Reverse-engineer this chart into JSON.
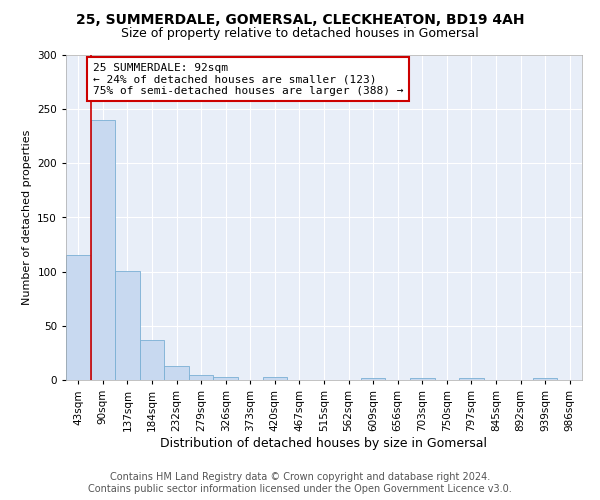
{
  "title1": "25, SUMMERDALE, GOMERSAL, CLECKHEATON, BD19 4AH",
  "title2": "Size of property relative to detached houses in Gomersal",
  "xlabel": "Distribution of detached houses by size in Gomersal",
  "ylabel": "Number of detached properties",
  "categories": [
    "43sqm",
    "90sqm",
    "137sqm",
    "184sqm",
    "232sqm",
    "279sqm",
    "326sqm",
    "373sqm",
    "420sqm",
    "467sqm",
    "515sqm",
    "562sqm",
    "609sqm",
    "656sqm",
    "703sqm",
    "750sqm",
    "797sqm",
    "845sqm",
    "892sqm",
    "939sqm",
    "986sqm"
  ],
  "values": [
    115,
    240,
    101,
    37,
    13,
    5,
    3,
    0,
    3,
    0,
    0,
    0,
    2,
    0,
    2,
    0,
    2,
    0,
    0,
    2,
    0
  ],
  "bar_color": "#c8d9f0",
  "bar_edge_color": "#7aafd4",
  "vline_color": "#cc0000",
  "annotation_line1": "25 SUMMERDALE: 92sqm",
  "annotation_line2": "← 24% of detached houses are smaller (123)",
  "annotation_line3": "75% of semi-detached houses are larger (388) →",
  "annotation_box_facecolor": "#ffffff",
  "annotation_box_edgecolor": "#cc0000",
  "ylim": [
    0,
    300
  ],
  "yticks": [
    0,
    50,
    100,
    150,
    200,
    250,
    300
  ],
  "bg_color": "#ffffff",
  "plot_bg_color": "#e8eef8",
  "grid_color": "#ffffff",
  "title1_fontsize": 10,
  "title2_fontsize": 9,
  "xlabel_fontsize": 9,
  "ylabel_fontsize": 8,
  "tick_fontsize": 7.5,
  "ann_fontsize": 8,
  "footer_fontsize": 7,
  "footer1": "Contains HM Land Registry data © Crown copyright and database right 2024.",
  "footer2": "Contains public sector information licensed under the Open Government Licence v3.0."
}
